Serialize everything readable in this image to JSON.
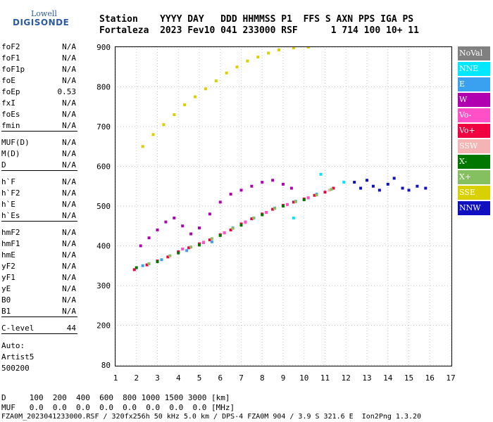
{
  "logo": {
    "line1": "Lowell",
    "line2": "DIGISONDE"
  },
  "header": {
    "line1": "Station    YYYY DAY   DDD HHMMSS P1  FFS S AXN PPS IGA PS",
    "line2": "Fortaleza  2023 Fev10 041 233000 RSF      1 714 100 10+ 11"
  },
  "params": [
    {
      "name": "foF2",
      "value": "N/A"
    },
    {
      "name": "foF1",
      "value": "N/A"
    },
    {
      "name": "foF1p",
      "value": "N/A"
    },
    {
      "name": "foE",
      "value": "N/A"
    },
    {
      "name": "foEp",
      "value": "0.53"
    },
    {
      "name": "fxI",
      "value": "N/A"
    },
    {
      "name": "foEs",
      "value": "N/A"
    },
    {
      "name": "fmin",
      "value": "N/A"
    },
    {
      "name": "MUF(D)",
      "value": "N/A"
    },
    {
      "name": "M(D)",
      "value": "N/A"
    },
    {
      "name": "D",
      "value": "N/A"
    },
    {
      "name": "h`F",
      "value": "N/A"
    },
    {
      "name": "h`F2",
      "value": "N/A"
    },
    {
      "name": "h`E",
      "value": "N/A"
    },
    {
      "name": "h`Es",
      "value": "N/A"
    },
    {
      "name": "hmF2",
      "value": "N/A"
    },
    {
      "name": "hmF1",
      "value": "N/A"
    },
    {
      "name": "hmE",
      "value": "N/A"
    },
    {
      "name": "yF2",
      "value": "N/A"
    },
    {
      "name": "yF1",
      "value": "N/A"
    },
    {
      "name": "yE",
      "value": "N/A"
    },
    {
      "name": "B0",
      "value": "N/A"
    },
    {
      "name": "B1",
      "value": "N/A"
    },
    {
      "name": "C-level",
      "value": "44"
    }
  ],
  "auto": {
    "line1": "Auto:",
    "line2": "Artist5",
    "line3": "500200"
  },
  "legend": [
    {
      "label": "NoVal",
      "color": "#808080"
    },
    {
      "label": "NNE",
      "color": "#00e8ff"
    },
    {
      "label": "E",
      "color": "#3aa0f0"
    },
    {
      "label": "W",
      "color": "#b000b0"
    },
    {
      "label": "Vo-",
      "color": "#ff50c8"
    },
    {
      "label": "Vo+",
      "color": "#f00040"
    },
    {
      "label": "SSW",
      "color": "#f4b4b4"
    },
    {
      "label": "X-",
      "color": "#007800"
    },
    {
      "label": "X+",
      "color": "#84c060"
    },
    {
      "label": "SSE",
      "color": "#d8d000"
    },
    {
      "label": "NNW",
      "color": "#1010c0"
    }
  ],
  "footer": {
    "line1": "D     100  200  400  600  800 1000 1500 3000 [km]",
    "line2": "MUF   0.0  0.0  0.0  0.0  0.0  0.0  0.0  0.0 [MHz]",
    "file": "FZA0M_2023041233000.RSF / 320fx256h 50 kHz 5.0 km / DPS-4 FZA0M 904 / 3.9 S 321.6 E  Ion2Png 1.3.20"
  },
  "chart_data": {
    "type": "scatter",
    "title": "",
    "xlabel": "",
    "ylabel": "",
    "xlim": [
      1,
      17
    ],
    "ylim": [
      80,
      900
    ],
    "x_ticks": [
      "1",
      "2",
      "3",
      "4",
      "5",
      "6",
      "7",
      "8",
      "9",
      "10",
      "11",
      "12",
      "13",
      "14",
      "15",
      "16",
      "17"
    ],
    "y_ticks": [
      "80",
      "200",
      "300",
      "400",
      "500",
      "600",
      "700",
      "800",
      "900"
    ],
    "y_tick_values": [
      80,
      200,
      300,
      400,
      500,
      600,
      700,
      800,
      900
    ],
    "grid": true,
    "series": [
      {
        "name": "SSE",
        "color": "#d8d000",
        "points": [
          [
            2.3,
            650
          ],
          [
            2.8,
            680
          ],
          [
            3.3,
            705
          ],
          [
            3.8,
            730
          ],
          [
            4.3,
            755
          ],
          [
            4.8,
            775
          ],
          [
            5.3,
            795
          ],
          [
            5.8,
            815
          ],
          [
            6.3,
            835
          ],
          [
            6.8,
            850
          ],
          [
            7.3,
            865
          ],
          [
            7.8,
            875
          ],
          [
            8.3,
            885
          ],
          [
            8.8,
            893
          ],
          [
            9.5,
            898
          ],
          [
            10.2,
            900
          ]
        ]
      },
      {
        "name": "Vo+",
        "color": "#f00040",
        "points": [
          [
            1.9,
            340
          ],
          [
            2.5,
            352
          ],
          [
            3.0,
            362
          ],
          [
            3.5,
            372
          ],
          [
            4.0,
            385
          ],
          [
            4.5,
            395
          ],
          [
            5.0,
            405
          ],
          [
            5.5,
            415
          ],
          [
            6.0,
            428
          ],
          [
            6.5,
            440
          ],
          [
            7.0,
            455
          ],
          [
            7.5,
            468
          ],
          [
            8.0,
            480
          ],
          [
            8.5,
            492
          ],
          [
            9.0,
            502
          ],
          [
            9.5,
            510
          ],
          [
            10.0,
            518
          ],
          [
            10.5,
            527
          ],
          [
            11.0,
            535
          ],
          [
            11.4,
            545
          ]
        ]
      },
      {
        "name": "W",
        "color": "#b000b0",
        "points": [
          [
            2.2,
            400
          ],
          [
            2.6,
            420
          ],
          [
            3.0,
            440
          ],
          [
            3.4,
            460
          ],
          [
            3.8,
            470
          ],
          [
            4.2,
            450
          ],
          [
            4.6,
            430
          ],
          [
            5.0,
            445
          ],
          [
            5.5,
            480
          ],
          [
            6.0,
            510
          ],
          [
            6.5,
            530
          ],
          [
            7.0,
            540
          ],
          [
            7.5,
            550
          ],
          [
            8.0,
            560
          ],
          [
            8.5,
            565
          ],
          [
            9.0,
            555
          ],
          [
            9.4,
            545
          ]
        ]
      },
      {
        "name": "NNW",
        "color": "#1010c0",
        "points": [
          [
            12.4,
            560
          ],
          [
            12.7,
            545
          ],
          [
            13.0,
            565
          ],
          [
            13.3,
            550
          ],
          [
            13.6,
            540
          ],
          [
            14.0,
            555
          ],
          [
            14.3,
            570
          ],
          [
            14.7,
            545
          ],
          [
            15.0,
            540
          ],
          [
            15.4,
            550
          ],
          [
            15.8,
            545
          ]
        ]
      },
      {
        "name": "E",
        "color": "#3aa0f0",
        "points": [
          [
            2.3,
            350
          ],
          [
            3.2,
            365
          ],
          [
            4.4,
            388
          ],
          [
            5.6,
            410
          ],
          [
            6.6,
            445
          ],
          [
            7.6,
            470
          ],
          [
            8.6,
            495
          ],
          [
            9.6,
            512
          ],
          [
            10.6,
            530
          ]
        ]
      },
      {
        "name": "SSW",
        "color": "#f4b4b4",
        "points": [
          [
            5.2,
            410
          ],
          [
            6.2,
            432
          ],
          [
            7.2,
            458
          ],
          [
            8.2,
            484
          ],
          [
            9.2,
            503
          ],
          [
            10.2,
            520
          ],
          [
            11.2,
            540
          ]
        ]
      },
      {
        "name": "X-",
        "color": "#007800",
        "points": [
          [
            2.0,
            345
          ],
          [
            3.0,
            360
          ],
          [
            4.0,
            382
          ],
          [
            5.0,
            402
          ],
          [
            6.0,
            426
          ],
          [
            7.0,
            452
          ],
          [
            8.0,
            478
          ],
          [
            9.0,
            500
          ],
          [
            10.0,
            516
          ]
        ]
      },
      {
        "name": "X+",
        "color": "#84c060",
        "points": [
          [
            2.6,
            355
          ],
          [
            3.6,
            375
          ],
          [
            4.6,
            397
          ],
          [
            5.6,
            418
          ],
          [
            6.6,
            444
          ],
          [
            7.6,
            470
          ],
          [
            8.6,
            494
          ],
          [
            9.6,
            511
          ],
          [
            10.6,
            528
          ],
          [
            11.3,
            542
          ]
        ]
      },
      {
        "name": "Vo-",
        "color": "#ff50c8",
        "points": [
          [
            4.2,
            392
          ],
          [
            5.2,
            408
          ],
          [
            6.2,
            433
          ],
          [
            7.2,
            460
          ],
          [
            8.2,
            484
          ],
          [
            9.2,
            504
          ],
          [
            10.2,
            521
          ]
        ]
      },
      {
        "name": "NNE",
        "color": "#00e8ff",
        "points": [
          [
            10.8,
            580
          ],
          [
            11.9,
            560
          ],
          [
            9.5,
            470
          ]
        ]
      }
    ]
  }
}
